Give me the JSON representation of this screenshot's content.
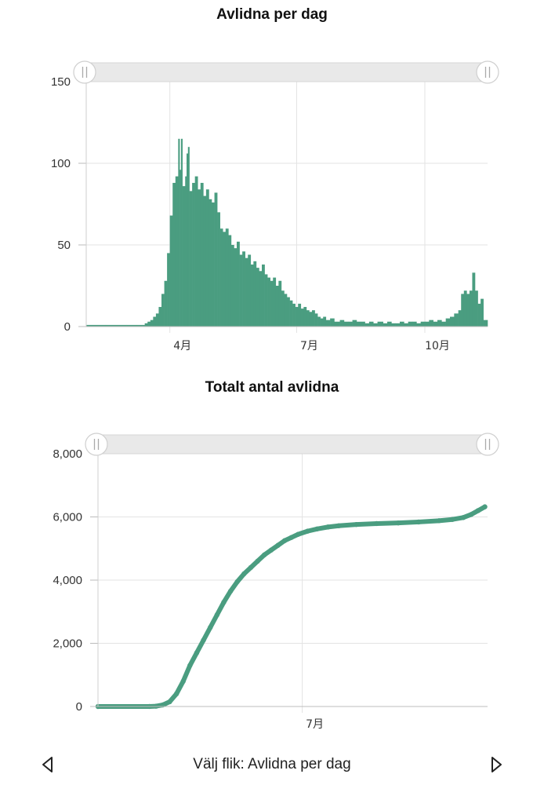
{
  "chart_data": [
    {
      "type": "bar",
      "title": "Avlidna per dag",
      "xlabel": "",
      "ylabel": "",
      "ylim": [
        0,
        150
      ],
      "y_ticks": [
        "0",
        "50",
        "100",
        "150"
      ],
      "x_ticks": [
        "4月",
        "7月",
        "10月"
      ],
      "x_range": [
        "2020-02-01",
        "2020-11-15"
      ],
      "grid": true,
      "color": "#4a9d80",
      "points": [
        [
          "2020-02-01",
          1
        ],
        [
          "2020-02-15",
          1
        ],
        [
          "2020-03-01",
          1
        ],
        [
          "2020-03-08",
          1
        ],
        [
          "2020-03-12",
          1
        ],
        [
          "2020-03-14",
          2
        ],
        [
          "2020-03-16",
          3
        ],
        [
          "2020-03-18",
          4
        ],
        [
          "2020-03-20",
          6
        ],
        [
          "2020-03-22",
          8
        ],
        [
          "2020-03-24",
          12
        ],
        [
          "2020-03-26",
          20
        ],
        [
          "2020-03-28",
          28
        ],
        [
          "2020-03-30",
          45
        ],
        [
          "2020-04-01",
          68
        ],
        [
          "2020-04-03",
          88
        ],
        [
          "2020-04-05",
          92
        ],
        [
          "2020-04-07",
          115
        ],
        [
          "2020-04-08",
          96
        ],
        [
          "2020-04-09",
          115
        ],
        [
          "2020-04-10",
          86
        ],
        [
          "2020-04-12",
          92
        ],
        [
          "2020-04-13",
          106
        ],
        [
          "2020-04-14",
          110
        ],
        [
          "2020-04-15",
          83
        ],
        [
          "2020-04-17",
          88
        ],
        [
          "2020-04-19",
          92
        ],
        [
          "2020-04-21",
          84
        ],
        [
          "2020-04-23",
          88
        ],
        [
          "2020-04-25",
          80
        ],
        [
          "2020-04-27",
          84
        ],
        [
          "2020-04-29",
          78
        ],
        [
          "2020-05-01",
          76
        ],
        [
          "2020-05-03",
          82
        ],
        [
          "2020-05-05",
          70
        ],
        [
          "2020-05-07",
          60
        ],
        [
          "2020-05-09",
          58
        ],
        [
          "2020-05-11",
          60
        ],
        [
          "2020-05-13",
          56
        ],
        [
          "2020-05-15",
          50
        ],
        [
          "2020-05-17",
          48
        ],
        [
          "2020-05-19",
          52
        ],
        [
          "2020-05-21",
          44
        ],
        [
          "2020-05-23",
          46
        ],
        [
          "2020-05-25",
          42
        ],
        [
          "2020-05-27",
          44
        ],
        [
          "2020-05-29",
          38
        ],
        [
          "2020-05-31",
          40
        ],
        [
          "2020-06-02",
          36
        ],
        [
          "2020-06-04",
          34
        ],
        [
          "2020-06-06",
          38
        ],
        [
          "2020-06-08",
          32
        ],
        [
          "2020-06-10",
          30
        ],
        [
          "2020-06-12",
          28
        ],
        [
          "2020-06-14",
          30
        ],
        [
          "2020-06-16",
          25
        ],
        [
          "2020-06-18",
          28
        ],
        [
          "2020-06-20",
          22
        ],
        [
          "2020-06-22",
          20
        ],
        [
          "2020-06-24",
          18
        ],
        [
          "2020-06-26",
          16
        ],
        [
          "2020-06-28",
          14
        ],
        [
          "2020-06-30",
          12
        ],
        [
          "2020-07-02",
          14
        ],
        [
          "2020-07-04",
          11
        ],
        [
          "2020-07-06",
          12
        ],
        [
          "2020-07-08",
          10
        ],
        [
          "2020-07-10",
          9
        ],
        [
          "2020-07-12",
          10
        ],
        [
          "2020-07-14",
          8
        ],
        [
          "2020-07-16",
          6
        ],
        [
          "2020-07-18",
          5
        ],
        [
          "2020-07-20",
          6
        ],
        [
          "2020-07-22",
          4
        ],
        [
          "2020-07-25",
          5
        ],
        [
          "2020-07-28",
          3
        ],
        [
          "2020-08-01",
          4
        ],
        [
          "2020-08-04",
          3
        ],
        [
          "2020-08-07",
          3
        ],
        [
          "2020-08-10",
          4
        ],
        [
          "2020-08-13",
          3
        ],
        [
          "2020-08-16",
          3
        ],
        [
          "2020-08-19",
          2
        ],
        [
          "2020-08-22",
          3
        ],
        [
          "2020-08-25",
          2
        ],
        [
          "2020-08-28",
          3
        ],
        [
          "2020-09-01",
          2
        ],
        [
          "2020-09-04",
          3
        ],
        [
          "2020-09-07",
          2
        ],
        [
          "2020-09-10",
          2
        ],
        [
          "2020-09-13",
          3
        ],
        [
          "2020-09-16",
          2
        ],
        [
          "2020-09-19",
          3
        ],
        [
          "2020-09-22",
          3
        ],
        [
          "2020-09-25",
          2
        ],
        [
          "2020-09-28",
          3
        ],
        [
          "2020-10-01",
          3
        ],
        [
          "2020-10-04",
          4
        ],
        [
          "2020-10-07",
          3
        ],
        [
          "2020-10-10",
          4
        ],
        [
          "2020-10-13",
          3
        ],
        [
          "2020-10-16",
          5
        ],
        [
          "2020-10-19",
          6
        ],
        [
          "2020-10-22",
          8
        ],
        [
          "2020-10-25",
          10
        ],
        [
          "2020-10-27",
          20
        ],
        [
          "2020-10-29",
          22
        ],
        [
          "2020-10-31",
          20
        ],
        [
          "2020-11-02",
          22
        ],
        [
          "2020-11-04",
          33
        ],
        [
          "2020-11-06",
          22
        ],
        [
          "2020-11-08",
          14
        ],
        [
          "2020-11-10",
          17
        ],
        [
          "2020-11-12",
          4
        ]
      ]
    },
    {
      "type": "line",
      "title": "Totalt antal avlidna",
      "xlabel": "",
      "ylabel": "",
      "ylim": [
        0,
        8000
      ],
      "y_ticks": [
        "0",
        "2,000",
        "4,000",
        "6,000",
        "8,000"
      ],
      "x_ticks": [
        "7月"
      ],
      "x_range": [
        "2020-02-01",
        "2020-11-15"
      ],
      "grid": true,
      "color": "#4a9d80",
      "points": [
        [
          "2020-02-01",
          0
        ],
        [
          "2020-03-10",
          1
        ],
        [
          "2020-03-15",
          10
        ],
        [
          "2020-03-20",
          50
        ],
        [
          "2020-03-25",
          150
        ],
        [
          "2020-03-30",
          400
        ],
        [
          "2020-04-04",
          800
        ],
        [
          "2020-04-09",
          1300
        ],
        [
          "2020-04-14",
          1700
        ],
        [
          "2020-04-19",
          2100
        ],
        [
          "2020-04-24",
          2500
        ],
        [
          "2020-04-29",
          2900
        ],
        [
          "2020-05-04",
          3300
        ],
        [
          "2020-05-09",
          3650
        ],
        [
          "2020-05-14",
          3950
        ],
        [
          "2020-05-19",
          4200
        ],
        [
          "2020-05-24",
          4400
        ],
        [
          "2020-05-29",
          4600
        ],
        [
          "2020-06-03",
          4800
        ],
        [
          "2020-06-08",
          4950
        ],
        [
          "2020-06-13",
          5100
        ],
        [
          "2020-06-18",
          5250
        ],
        [
          "2020-06-23",
          5350
        ],
        [
          "2020-06-28",
          5450
        ],
        [
          "2020-07-05",
          5550
        ],
        [
          "2020-07-12",
          5620
        ],
        [
          "2020-07-20",
          5680
        ],
        [
          "2020-07-28",
          5720
        ],
        [
          "2020-08-10",
          5760
        ],
        [
          "2020-08-25",
          5790
        ],
        [
          "2020-09-10",
          5810
        ],
        [
          "2020-09-25",
          5840
        ],
        [
          "2020-10-10",
          5880
        ],
        [
          "2020-10-20",
          5920
        ],
        [
          "2020-10-28",
          5980
        ],
        [
          "2020-11-03",
          6080
        ],
        [
          "2020-11-08",
          6200
        ],
        [
          "2020-11-13",
          6320
        ]
      ]
    }
  ],
  "footer": {
    "label": "Välj flik: Avlidna per dag",
    "prev_icon": "triangle-left-icon",
    "next_icon": "triangle-right-icon"
  }
}
